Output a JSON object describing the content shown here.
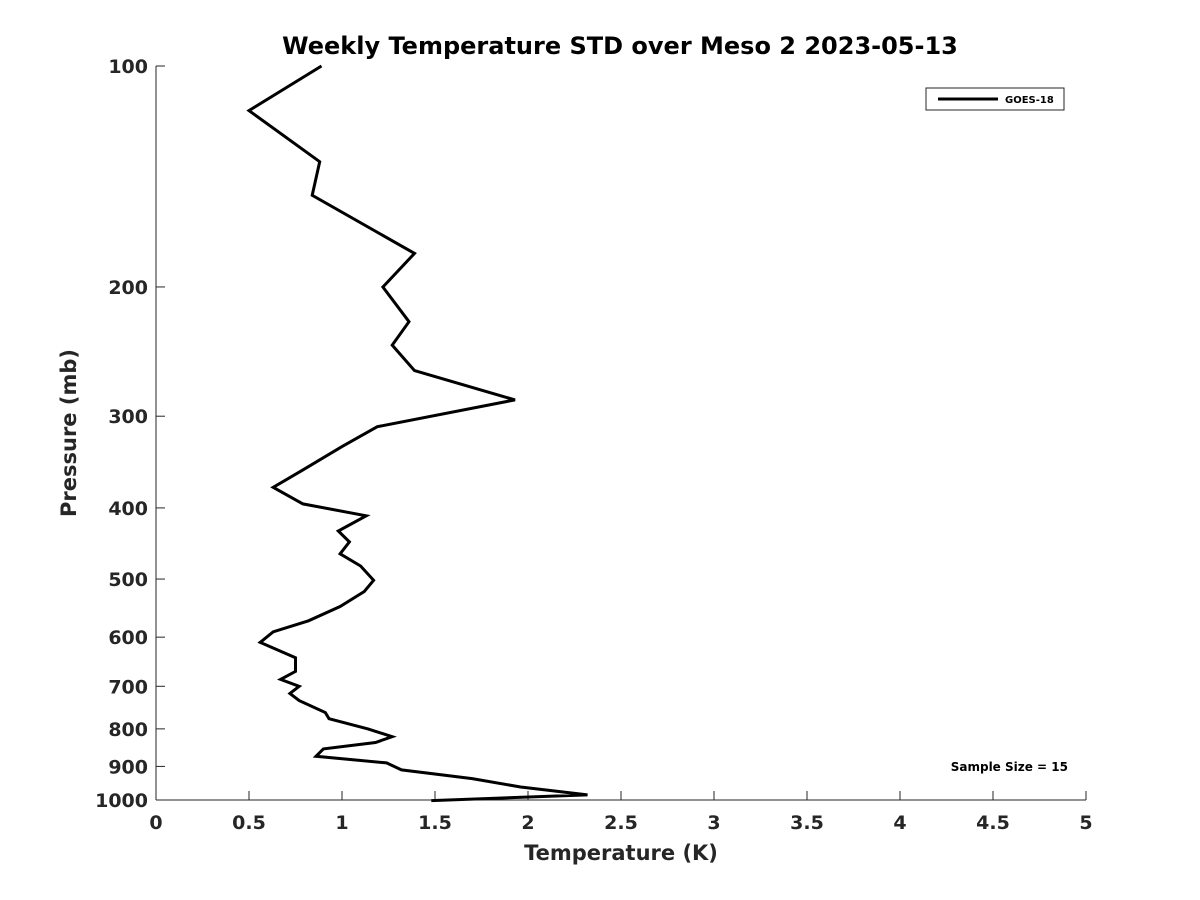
{
  "chart_data": {
    "type": "line",
    "title": "Weekly Temperature STD over Meso 2 2023-05-13",
    "xlabel": "Temperature (K)",
    "ylabel": "Pressure (mb)",
    "xlim": [
      0,
      5
    ],
    "ylim": [
      100,
      1000
    ],
    "y_scale": "log",
    "y_reversed": true,
    "grid": false,
    "legend_position": "top-right",
    "x_ticks": [
      "0",
      "0.5",
      "1",
      "1.5",
      "2",
      "2.5",
      "3",
      "3.5",
      "4",
      "4.5",
      "5"
    ],
    "y_ticks": [
      "100",
      "200",
      "300",
      "400",
      "500",
      "600",
      "700",
      "800",
      "900",
      "1000"
    ],
    "annotation": "Sample Size = 15",
    "series": [
      {
        "name": "GOES-18",
        "color": "#000000",
        "points": [
          [
            0.89,
            100
          ],
          [
            0.5,
            115
          ],
          [
            0.88,
            135
          ],
          [
            0.84,
            150
          ],
          [
            1.39,
            180
          ],
          [
            1.22,
            200
          ],
          [
            1.36,
            223
          ],
          [
            1.27,
            240
          ],
          [
            1.39,
            260
          ],
          [
            1.93,
            285
          ],
          [
            1.19,
            310
          ],
          [
            1.0,
            330
          ],
          [
            0.79,
            355
          ],
          [
            0.63,
            375
          ],
          [
            0.79,
            395
          ],
          [
            1.13,
            410
          ],
          [
            0.98,
            430
          ],
          [
            1.04,
            445
          ],
          [
            0.99,
            462
          ],
          [
            1.1,
            480
          ],
          [
            1.17,
            502
          ],
          [
            1.12,
            520
          ],
          [
            0.99,
            545
          ],
          [
            0.82,
            570
          ],
          [
            0.63,
            590
          ],
          [
            0.56,
            610
          ],
          [
            0.75,
            640
          ],
          [
            0.75,
            668
          ],
          [
            0.67,
            685
          ],
          [
            0.77,
            700
          ],
          [
            0.72,
            716
          ],
          [
            0.77,
            732
          ],
          [
            0.91,
            760
          ],
          [
            0.93,
            775
          ],
          [
            1.14,
            800
          ],
          [
            1.27,
            820
          ],
          [
            1.18,
            835
          ],
          [
            0.9,
            852
          ],
          [
            0.86,
            872
          ],
          [
            1.24,
            890
          ],
          [
            1.32,
            910
          ],
          [
            1.7,
            935
          ],
          [
            1.96,
            960
          ],
          [
            2.32,
            984
          ],
          [
            1.48,
            1002
          ]
        ]
      }
    ]
  }
}
